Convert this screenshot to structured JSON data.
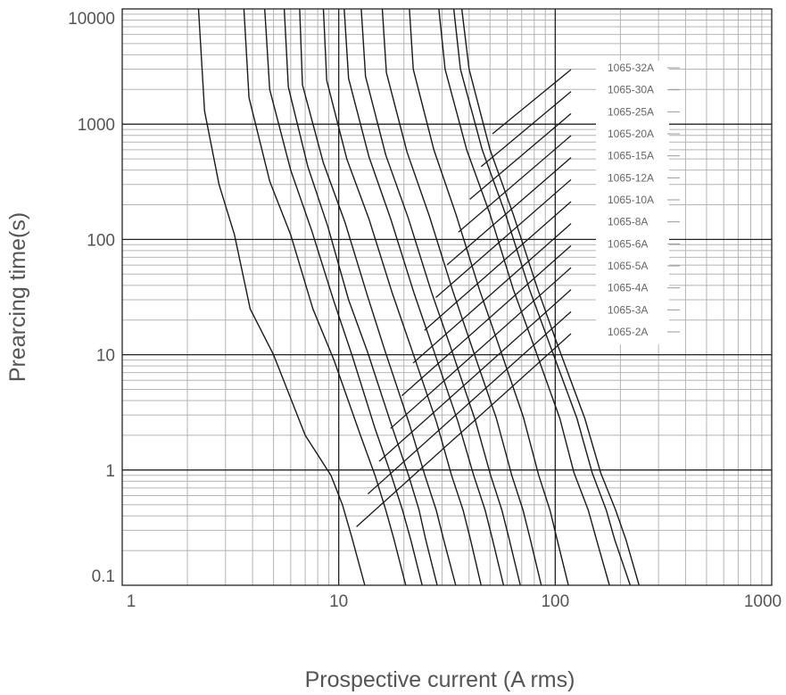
{
  "chart_data": {
    "type": "line",
    "title": "",
    "xlabel": "Prospective current (A rms)",
    "ylabel": "Prearcing time(s)",
    "xscale": "log",
    "yscale": "log",
    "xlim": [
      1,
      1000
    ],
    "ylim": [
      0.1,
      10000
    ],
    "grid": true,
    "legend_position": "right, with leader lines to each curve",
    "x_ticks": [
      "1",
      "10",
      "100",
      "1000"
    ],
    "y_ticks": [
      "0.1",
      "1",
      "10",
      "100",
      "1000",
      "10000"
    ],
    "series": [
      {
        "name": "1065-2A",
        "points": [
          [
            2.25,
            10000
          ],
          [
            2.4,
            1300
          ],
          [
            2.8,
            300
          ],
          [
            3.3,
            110
          ],
          [
            3.9,
            25
          ],
          [
            5,
            10
          ],
          [
            7,
            2
          ],
          [
            9.2,
            0.9
          ],
          [
            10.4,
            0.5
          ],
          [
            11.5,
            0.26
          ],
          [
            13.2,
            0.1
          ]
        ]
      },
      {
        "name": "1065-3A",
        "points": [
          [
            3.65,
            10000
          ],
          [
            3.85,
            1700
          ],
          [
            4.8,
            320
          ],
          [
            6,
            110
          ],
          [
            7.6,
            25
          ],
          [
            9.5,
            9
          ],
          [
            12.6,
            2
          ],
          [
            14.7,
            0.9
          ],
          [
            16.5,
            0.45
          ],
          [
            18,
            0.25
          ],
          [
            20.4,
            0.1
          ]
        ]
      },
      {
        "name": "1065-4A",
        "points": [
          [
            4.55,
            10000
          ],
          [
            4.8,
            2000
          ],
          [
            6,
            400
          ],
          [
            7.5,
            120
          ],
          [
            9.5,
            29
          ],
          [
            11.5,
            10
          ],
          [
            14.7,
            2.3
          ],
          [
            17.5,
            0.9
          ],
          [
            19.7,
            0.45
          ],
          [
            21.5,
            0.25
          ],
          [
            24.3,
            0.1
          ]
        ]
      },
      {
        "name": "1065-5A",
        "points": [
          [
            5.6,
            10000
          ],
          [
            5.85,
            2100
          ],
          [
            7.2,
            430
          ],
          [
            8.9,
            130
          ],
          [
            11.1,
            30
          ],
          [
            13.6,
            10.5
          ],
          [
            17.6,
            2.4
          ],
          [
            21,
            0.9
          ],
          [
            23.5,
            0.45
          ],
          [
            25.2,
            0.25
          ],
          [
            28.5,
            0.1
          ]
        ]
      },
      {
        "name": "1065-6A",
        "points": [
          [
            6.6,
            10000
          ],
          [
            6.8,
            2200
          ],
          [
            8.5,
            460
          ],
          [
            10.7,
            140
          ],
          [
            13.6,
            32
          ],
          [
            16.3,
            11
          ],
          [
            21.2,
            2.5
          ],
          [
            25,
            0.9
          ],
          [
            28.2,
            0.45
          ],
          [
            30.5,
            0.25
          ],
          [
            34.7,
            0.1
          ]
        ]
      },
      {
        "name": "1065-8A",
        "points": [
          [
            8.5,
            10000
          ],
          [
            8.8,
            2400
          ],
          [
            10.9,
            500
          ],
          [
            13.8,
            150
          ],
          [
            17.7,
            34
          ],
          [
            21.6,
            11.5
          ],
          [
            28.3,
            2.6
          ],
          [
            33.2,
            0.9
          ],
          [
            37.5,
            0.45
          ],
          [
            40.6,
            0.25
          ],
          [
            45.5,
            0.1
          ]
        ]
      },
      {
        "name": "1065-10A",
        "points": [
          [
            10.6,
            10000
          ],
          [
            11.1,
            2500
          ],
          [
            13.8,
            520
          ],
          [
            17.4,
            150
          ],
          [
            22.3,
            34
          ],
          [
            27.2,
            11.5
          ],
          [
            35.6,
            2.6
          ],
          [
            42,
            0.9
          ],
          [
            47.4,
            0.45
          ],
          [
            51.3,
            0.25
          ],
          [
            57.7,
            0.1
          ]
        ]
      },
      {
        "name": "1065-12A",
        "points": [
          [
            12.7,
            10000
          ],
          [
            13.3,
            2600
          ],
          [
            16.5,
            540
          ],
          [
            20.9,
            155
          ],
          [
            26.8,
            35
          ],
          [
            32.7,
            12
          ],
          [
            42.7,
            2.7
          ],
          [
            50.3,
            0.9
          ],
          [
            56.7,
            0.45
          ],
          [
            61.3,
            0.25
          ],
          [
            69,
            0.1
          ]
        ]
      },
      {
        "name": "1065-15A",
        "points": [
          [
            15.9,
            10000
          ],
          [
            16.6,
            2800
          ],
          [
            20.7,
            570
          ],
          [
            26.2,
            160
          ],
          [
            33.6,
            36
          ],
          [
            41,
            12
          ],
          [
            53.5,
            2.8
          ],
          [
            63,
            0.9
          ],
          [
            71,
            0.45
          ],
          [
            76.7,
            0.25
          ],
          [
            86.2,
            0.1
          ]
        ]
      },
      {
        "name": "1065-20A",
        "points": [
          [
            21.2,
            10000
          ],
          [
            22.1,
            3000
          ],
          [
            27.5,
            600
          ],
          [
            34.8,
            165
          ],
          [
            44.6,
            37
          ],
          [
            54.5,
            12.5
          ],
          [
            71.2,
            2.9
          ],
          [
            83.9,
            0.9
          ],
          [
            94.5,
            0.45
          ],
          [
            102,
            0.25
          ],
          [
            115,
            0.1
          ]
        ]
      },
      {
        "name": "1065-25A",
        "points": [
          [
            29,
            10000
          ],
          [
            31,
            3000
          ],
          [
            39,
            600
          ],
          [
            50,
            165
          ],
          [
            64,
            37
          ],
          [
            79,
            12.5
          ],
          [
            105,
            2.8
          ],
          [
            122,
            0.95
          ],
          [
            142,
            0.45
          ],
          [
            155,
            0.25
          ],
          [
            178,
            0.1
          ]
        ]
      },
      {
        "name": "1065-30A",
        "points": [
          [
            34,
            10000
          ],
          [
            36.5,
            3000
          ],
          [
            46,
            600
          ],
          [
            59,
            165
          ],
          [
            76,
            37
          ],
          [
            94,
            12.5
          ],
          [
            126,
            2.8
          ],
          [
            148,
            0.95
          ],
          [
            172,
            0.45
          ],
          [
            188,
            0.25
          ],
          [
            222,
            0.1
          ]
        ]
      },
      {
        "name": "1065-32A",
        "points": [
          [
            37,
            10000
          ],
          [
            40,
            3000
          ],
          [
            50,
            600
          ],
          [
            64,
            165
          ],
          [
            83,
            37
          ],
          [
            102,
            12.5
          ],
          [
            137,
            2.8
          ],
          [
            162,
            0.95
          ],
          [
            190,
            0.45
          ],
          [
            212,
            0.25
          ],
          [
            244,
            0.1
          ]
        ]
      }
    ]
  }
}
